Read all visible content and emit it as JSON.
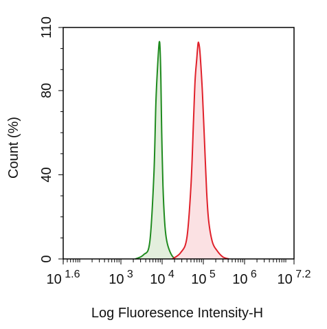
{
  "chart_data": {
    "type": "area",
    "title": "",
    "xlabel": "Log Fluoresence Intensity-H",
    "ylabel": "Count  (%)",
    "x_scale": "log10",
    "xlim_log10": [
      1.6,
      7.2
    ],
    "ylim": [
      0,
      110
    ],
    "grid": false,
    "legend": "none",
    "x_ticks": [
      {
        "base": "10",
        "exp": "1.6",
        "log": 1.6
      },
      {
        "base": "10",
        "exp": "3",
        "log": 3
      },
      {
        "base": "10",
        "exp": "4",
        "log": 4
      },
      {
        "base": "10",
        "exp": "5",
        "log": 5
      },
      {
        "base": "10",
        "exp": "6",
        "log": 6
      },
      {
        "base": "10",
        "exp": "7.2",
        "log": 7.2
      }
    ],
    "y_ticks": [
      {
        "label": "0",
        "value": 0
      },
      {
        "label": "40",
        "value": 40
      },
      {
        "label": "80",
        "value": 80
      },
      {
        "label": "110",
        "value": 110
      }
    ],
    "series": [
      {
        "color": "#1e8a1e",
        "fill": "#e3efdd",
        "log_x": [
          3.35,
          3.55,
          3.7,
          3.8,
          3.85,
          3.9,
          3.93,
          3.95,
          3.97,
          3.99,
          4.02,
          4.06,
          4.1,
          4.16,
          4.26,
          4.38
        ],
        "y": [
          0,
          2,
          8,
          40,
          75,
          95,
          103,
          100,
          85,
          60,
          35,
          18,
          10,
          5,
          1,
          0
        ]
      },
      {
        "color": "#e0202a",
        "fill": "#fbe1e3",
        "log_x": [
          4.25,
          4.45,
          4.6,
          4.7,
          4.76,
          4.8,
          4.84,
          4.86,
          4.88,
          4.91,
          4.94,
          4.98,
          5.03,
          5.08,
          5.13,
          5.22,
          5.33,
          5.47,
          5.62
        ],
        "y": [
          0,
          3,
          10,
          35,
          65,
          85,
          95,
          100,
          103,
          100,
          92,
          78,
          55,
          32,
          18,
          8,
          4,
          1,
          0
        ]
      }
    ]
  }
}
